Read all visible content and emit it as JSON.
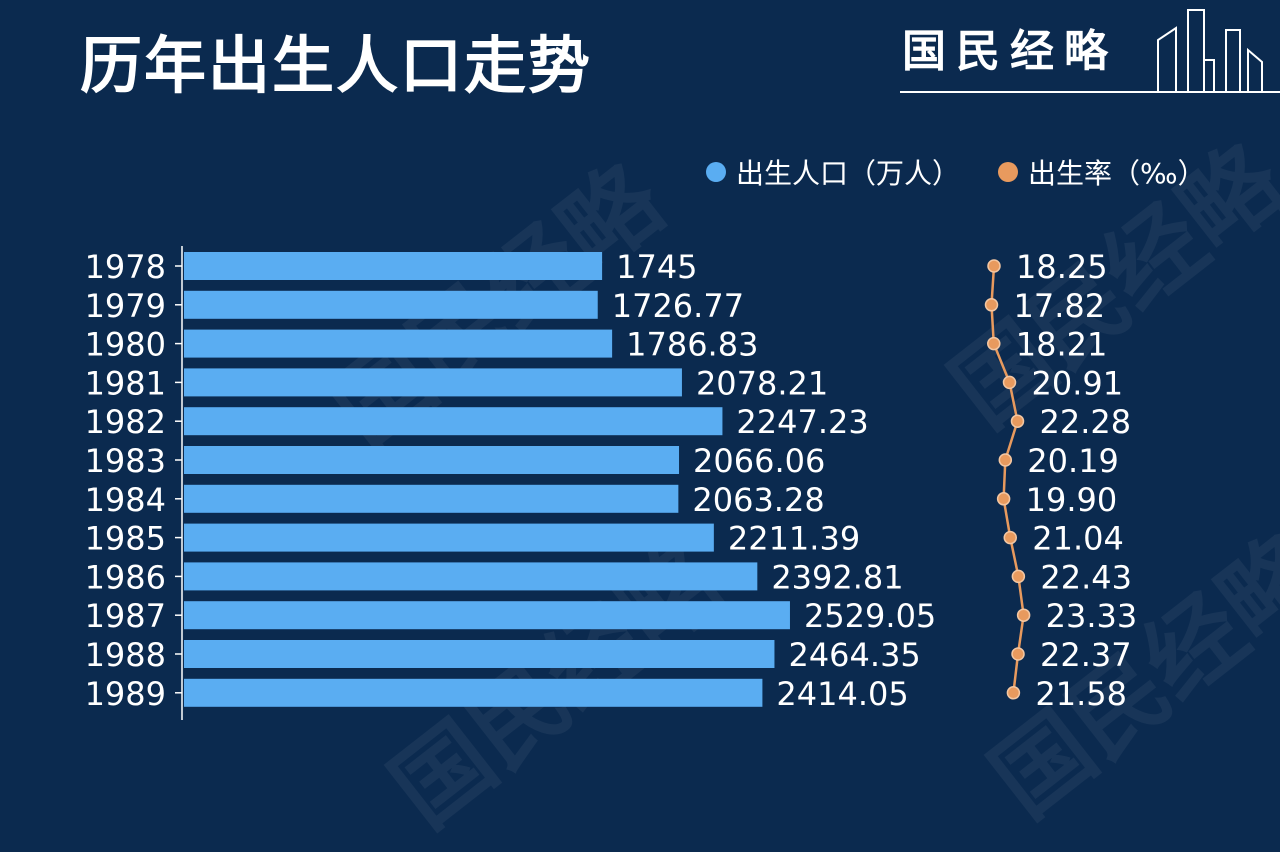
{
  "header": {
    "title": "历年出生人口走势",
    "brand": "国民经略"
  },
  "watermark": "国民经略",
  "colors": {
    "background": "#0b2a4f",
    "bar": "#5aadf2",
    "line": "#e89a5e",
    "text": "#ffffff"
  },
  "chart_data": {
    "type": "bar",
    "orientation": "horizontal",
    "categories": [
      "1978",
      "1979",
      "1980",
      "1981",
      "1982",
      "1983",
      "1984",
      "1985",
      "1986",
      "1987",
      "1988",
      "1989"
    ],
    "series": [
      {
        "name": "出生人口（万人）",
        "type": "bar",
        "values": [
          1745,
          1726.77,
          1786.83,
          2078.21,
          2247.23,
          2066.06,
          2063.28,
          2211.39,
          2392.81,
          2529.05,
          2464.35,
          2414.05
        ],
        "labels": [
          "1745",
          "1726.77",
          "1786.83",
          "2078.21",
          "2247.23",
          "2066.06",
          "2063.28",
          "2211.39",
          "2392.81",
          "2529.05",
          "2464.35",
          "2414.05"
        ]
      },
      {
        "name": "出生率（‰）",
        "type": "line",
        "values": [
          18.25,
          17.82,
          18.21,
          20.91,
          22.28,
          20.19,
          19.9,
          21.04,
          22.43,
          23.33,
          22.37,
          21.58
        ],
        "labels": [
          "18.25",
          "17.82",
          "18.21",
          "20.91",
          "22.28",
          "20.19",
          "19.90",
          "21.04",
          "22.43",
          "23.33",
          "22.37",
          "21.58"
        ]
      }
    ],
    "legend_position": "top-right",
    "grid": false
  }
}
